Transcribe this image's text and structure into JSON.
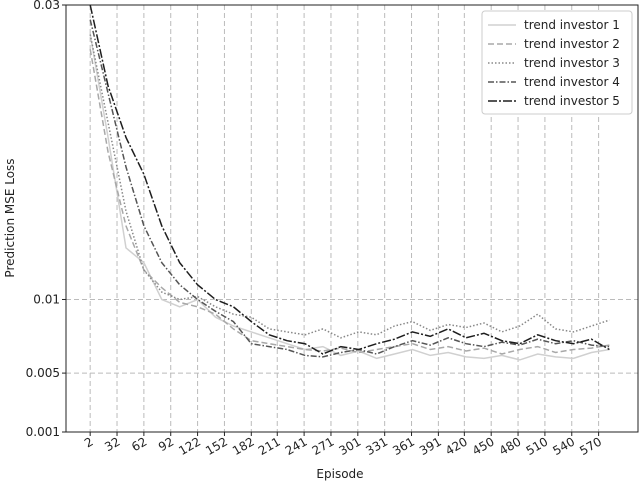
{
  "chart_data": {
    "type": "line",
    "xlabel": "Episode",
    "ylabel": "Prediction MSE Loss",
    "x": [
      2,
      22,
      42,
      62,
      82,
      102,
      122,
      142,
      162,
      182,
      202,
      222,
      242,
      262,
      282,
      302,
      322,
      342,
      362,
      382,
      402,
      422,
      442,
      462,
      482,
      502,
      522,
      542,
      562,
      582
    ],
    "xlim": [
      -25,
      614
    ],
    "xticks": [
      2,
      32,
      62,
      92,
      122,
      152,
      182,
      211,
      241,
      271,
      301,
      331,
      361,
      391,
      420,
      450,
      480,
      510,
      540,
      570
    ],
    "ylim": [
      0.001,
      0.03
    ],
    "yticks": [
      0.001,
      0.005,
      0.01,
      0.03
    ],
    "grid": true,
    "legend": "upper right",
    "series": [
      {
        "name": "trend investor 1",
        "color": "#d0d0d0",
        "dash": "solid",
        "values": [
          0.028,
          0.021,
          0.0135,
          0.0125,
          0.01,
          0.0095,
          0.01,
          0.0088,
          0.0082,
          0.0078,
          0.0074,
          0.007,
          0.0066,
          0.0068,
          0.0062,
          0.0065,
          0.006,
          0.0063,
          0.0066,
          0.0062,
          0.0064,
          0.0061,
          0.006,
          0.0062,
          0.0059,
          0.0063,
          0.0061,
          0.006,
          0.0064,
          0.0066
        ]
      },
      {
        "name": "trend investor 2",
        "color": "#a8a8a8",
        "dash": "dashed",
        "values": [
          0.027,
          0.02,
          0.015,
          0.012,
          0.0108,
          0.0098,
          0.0095,
          0.009,
          0.008,
          0.0072,
          0.007,
          0.0068,
          0.0066,
          0.0065,
          0.0067,
          0.0064,
          0.0066,
          0.0068,
          0.007,
          0.0066,
          0.0068,
          0.0065,
          0.0067,
          0.0063,
          0.0066,
          0.0068,
          0.0064,
          0.0066,
          0.0067,
          0.0069
        ]
      },
      {
        "name": "trend investor 3",
        "color": "#888888",
        "dash": "dotted",
        "values": [
          0.028,
          0.022,
          0.016,
          0.012,
          0.0105,
          0.01,
          0.0102,
          0.0095,
          0.009,
          0.0088,
          0.008,
          0.0078,
          0.0076,
          0.008,
          0.0074,
          0.0078,
          0.0076,
          0.0082,
          0.0085,
          0.0079,
          0.0083,
          0.0081,
          0.0084,
          0.0078,
          0.0082,
          0.009,
          0.008,
          0.0078,
          0.0082,
          0.0086
        ]
      },
      {
        "name": "trend investor 4",
        "color": "#555555",
        "dash": "dashdot",
        "values": [
          0.029,
          0.024,
          0.019,
          0.015,
          0.0125,
          0.011,
          0.01,
          0.0092,
          0.0085,
          0.007,
          0.0068,
          0.0066,
          0.0062,
          0.0061,
          0.0064,
          0.0066,
          0.0063,
          0.0068,
          0.0072,
          0.0069,
          0.0074,
          0.007,
          0.0068,
          0.0071,
          0.0069,
          0.0073,
          0.007,
          0.0072,
          0.0069,
          0.0068
        ]
      },
      {
        "name": "trend investor 5",
        "color": "#1e1e1e",
        "dash": "longdashdot",
        "values": [
          0.03,
          0.0245,
          0.021,
          0.0185,
          0.015,
          0.0125,
          0.011,
          0.01,
          0.0095,
          0.0085,
          0.0076,
          0.0072,
          0.007,
          0.0063,
          0.0068,
          0.0066,
          0.007,
          0.0073,
          0.0078,
          0.0075,
          0.008,
          0.0074,
          0.0077,
          0.0072,
          0.007,
          0.0076,
          0.0072,
          0.007,
          0.0073,
          0.0066
        ]
      }
    ]
  }
}
